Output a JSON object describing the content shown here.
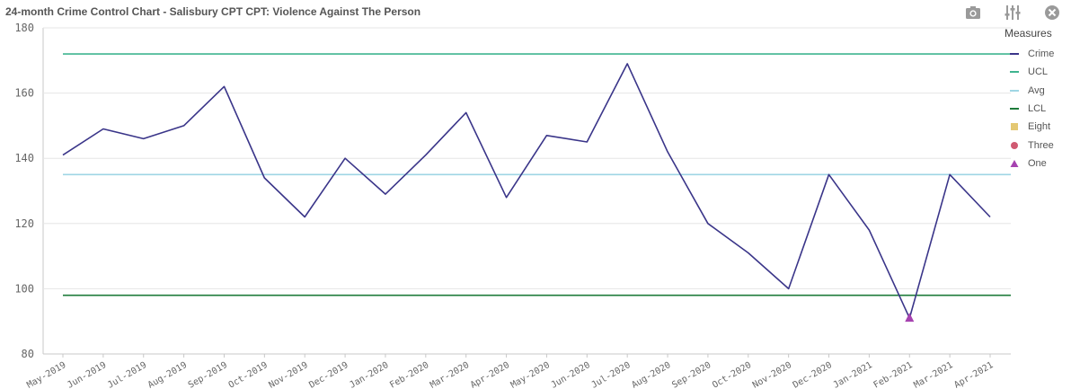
{
  "title": "24-month Crime Control Chart - Salisbury CPT CPT: Violence Against The Person",
  "toolbar": {
    "icons": [
      "camera-icon",
      "sliders-icon",
      "close-icon"
    ]
  },
  "chart_data": {
    "type": "line",
    "categories": [
      "May-2019",
      "Jun-2019",
      "Jul-2019",
      "Aug-2019",
      "Sep-2019",
      "Oct-2019",
      "Nov-2019",
      "Dec-2019",
      "Jan-2020",
      "Feb-2020",
      "Mar-2020",
      "Apr-2020",
      "May-2020",
      "Jun-2020",
      "Jul-2020",
      "Aug-2020",
      "Sep-2020",
      "Oct-2020",
      "Nov-2020",
      "Dec-2020",
      "Jan-2021",
      "Feb-2021",
      "Mar-2021",
      "Apr-2021"
    ],
    "series": [
      {
        "name": "Crime",
        "color": "#3a3589",
        "values": [
          141,
          149,
          146,
          150,
          162,
          134,
          122,
          140,
          129,
          141,
          154,
          128,
          147,
          145,
          169,
          142,
          120,
          111,
          100,
          135,
          118,
          91,
          135,
          122
        ]
      },
      {
        "name": "UCL",
        "color": "#3fb48f",
        "constant": 172
      },
      {
        "name": "Avg",
        "color": "#9fd6e4",
        "constant": 135
      },
      {
        "name": "LCL",
        "color": "#1e7b3a",
        "constant": 98
      }
    ],
    "markers": [
      {
        "name": "One",
        "color": "#a642b0",
        "shape": "triangle",
        "category": "Feb-2021",
        "value": 91
      }
    ],
    "ylim": [
      80,
      180
    ],
    "yticks": [
      80,
      100,
      120,
      140,
      160,
      180
    ],
    "grid": true,
    "legend": {
      "title": "Measures",
      "position": "right",
      "items": [
        {
          "name": "Crime",
          "color": "#3a3589",
          "shape": "line"
        },
        {
          "name": "UCL",
          "color": "#3fb48f",
          "shape": "line"
        },
        {
          "name": "Avg",
          "color": "#9fd6e4",
          "shape": "line"
        },
        {
          "name": "LCL",
          "color": "#1e7b3a",
          "shape": "line"
        },
        {
          "name": "Eight",
          "color": "#e4c873",
          "shape": "square"
        },
        {
          "name": "Three",
          "color": "#d05a72",
          "shape": "circle"
        },
        {
          "name": "One",
          "color": "#a642b0",
          "shape": "triangle"
        }
      ]
    }
  }
}
